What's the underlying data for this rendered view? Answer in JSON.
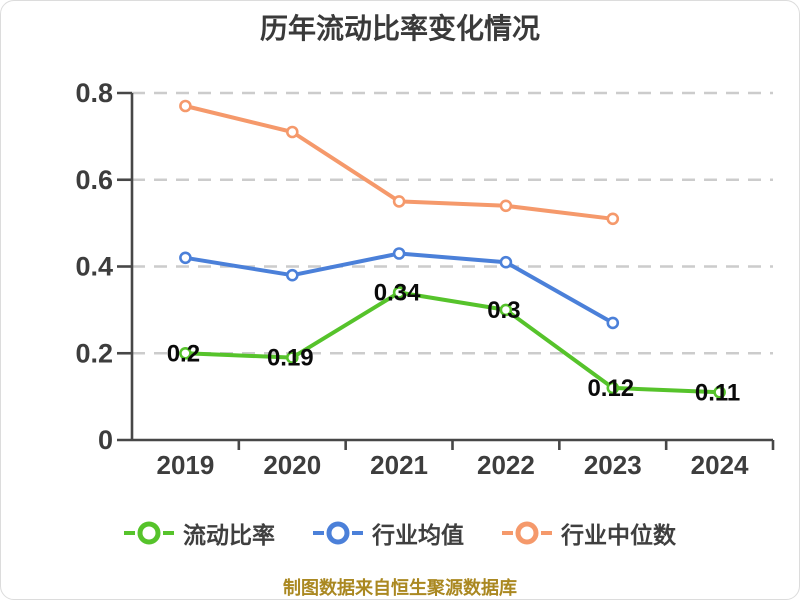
{
  "title": "历年流动比率变化情况",
  "caption": "制图数据来自恒生聚源数据库",
  "colors": {
    "current_ratio": "#56c32b",
    "industry_avg": "#4b80d9",
    "industry_median": "#f5996b",
    "grid": "#cccccc",
    "axis_line": "#474747",
    "tick_text": "#3d3d3d",
    "data_label_text": "#0a0a0a",
    "title_text": "#3a3a3a",
    "legend_text": "#3f3f3f",
    "caption_text": "#aa8821",
    "marker_fill": "#ffffff"
  },
  "chart_data": {
    "type": "line",
    "title": "历年流动比率变化情况",
    "categories": [
      "2019",
      "2020",
      "2021",
      "2022",
      "2023",
      "2024"
    ],
    "series": [
      {
        "name": "流动比率",
        "color_key": "current_ratio",
        "values": [
          0.2,
          0.19,
          0.34,
          0.3,
          0.12,
          0.11
        ],
        "point_labels": [
          "0.2",
          "0.19",
          "0.34",
          "0.3",
          "0.12",
          "0.11"
        ]
      },
      {
        "name": "行业均值",
        "color_key": "industry_avg",
        "values": [
          0.42,
          0.38,
          0.43,
          0.41,
          0.27,
          null
        ],
        "point_labels": null
      },
      {
        "name": "行业中位数",
        "color_key": "industry_median",
        "values": [
          0.77,
          0.71,
          0.55,
          0.54,
          0.51,
          null
        ],
        "point_labels": null
      }
    ],
    "xlabel": "",
    "ylabel": "",
    "ylim": [
      0,
      0.8
    ],
    "yticks": [
      "0",
      "0.2",
      "0.4",
      "0.6",
      "0.8"
    ],
    "grid": true,
    "grid_style": "dashed",
    "legend_position": "bottom"
  },
  "legend": {
    "items": [
      {
        "label": "流动比率",
        "color_key": "current_ratio"
      },
      {
        "label": "行业均值",
        "color_key": "industry_avg"
      },
      {
        "label": "行业中位数",
        "color_key": "industry_median"
      }
    ]
  }
}
